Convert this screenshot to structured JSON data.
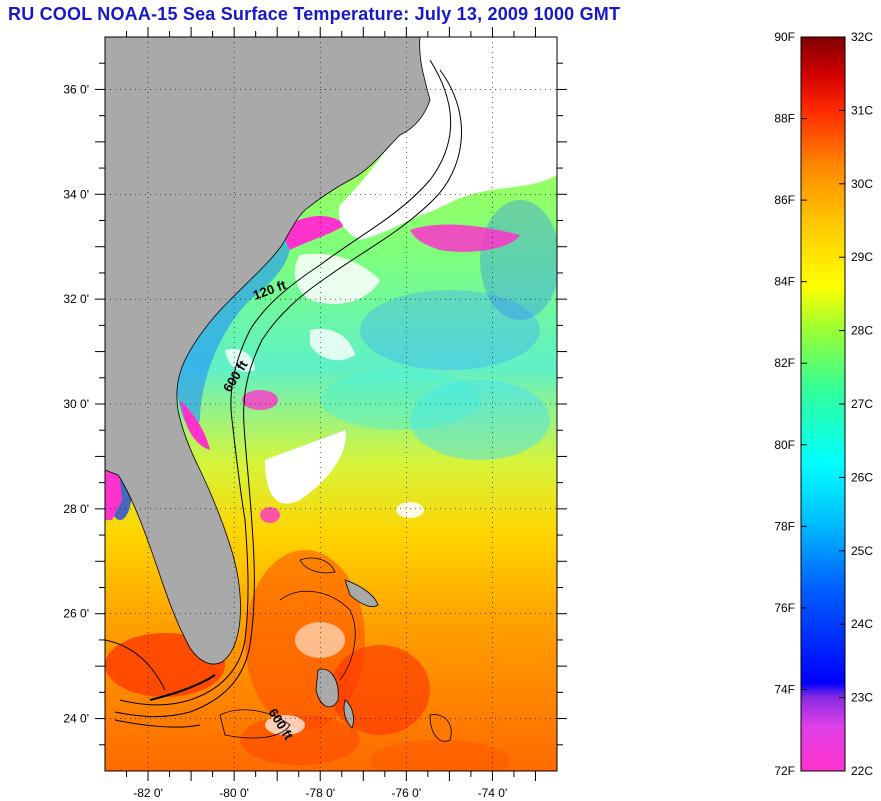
{
  "title": "RU COOL  NOAA-15  Sea Surface Temperature:  July 13, 2009 1000 GMT",
  "map": {
    "lon_range": [
      -83.0,
      -72.5
    ],
    "lat_range": [
      23.0,
      37.0
    ],
    "lat_ticks": [
      "36 0'",
      "34 0'",
      "32 0'",
      "30 0'",
      "28 0'",
      "26 0'",
      "24 0'"
    ],
    "lat_tick_values": [
      36,
      34,
      32,
      30,
      28,
      26,
      24
    ],
    "lon_ticks": [
      "-82 0'",
      "-80 0'",
      "-78 0'",
      "-76 0'",
      "-74 0'"
    ],
    "lon_tick_values": [
      -82,
      -80,
      -78,
      -76,
      -74
    ],
    "grid": "dotted",
    "contour_labels": [
      "120 ft",
      "600 ft",
      "600 ft"
    ],
    "colors": {
      "land": "#a9a9a9",
      "cloud": "#ffffff"
    }
  },
  "colorbar": {
    "fahrenheit_labels": [
      "90F",
      "88F",
      "86F",
      "84F",
      "82F",
      "80F",
      "78F",
      "76F",
      "74F",
      "72F"
    ],
    "celsius_labels": [
      "32C",
      "31C",
      "30C",
      "29C",
      "28C",
      "27C",
      "26C",
      "25C",
      "24C",
      "23C",
      "22C"
    ],
    "range_celsius": [
      22,
      32
    ],
    "colors": [
      "#ff33cc",
      "#8a2be2",
      "#0000ff",
      "#00bfff",
      "#00ffff",
      "#66ff66",
      "#ccff00",
      "#ffd700",
      "#ff8c00",
      "#ff3300",
      "#c00000",
      "#800000"
    ]
  }
}
